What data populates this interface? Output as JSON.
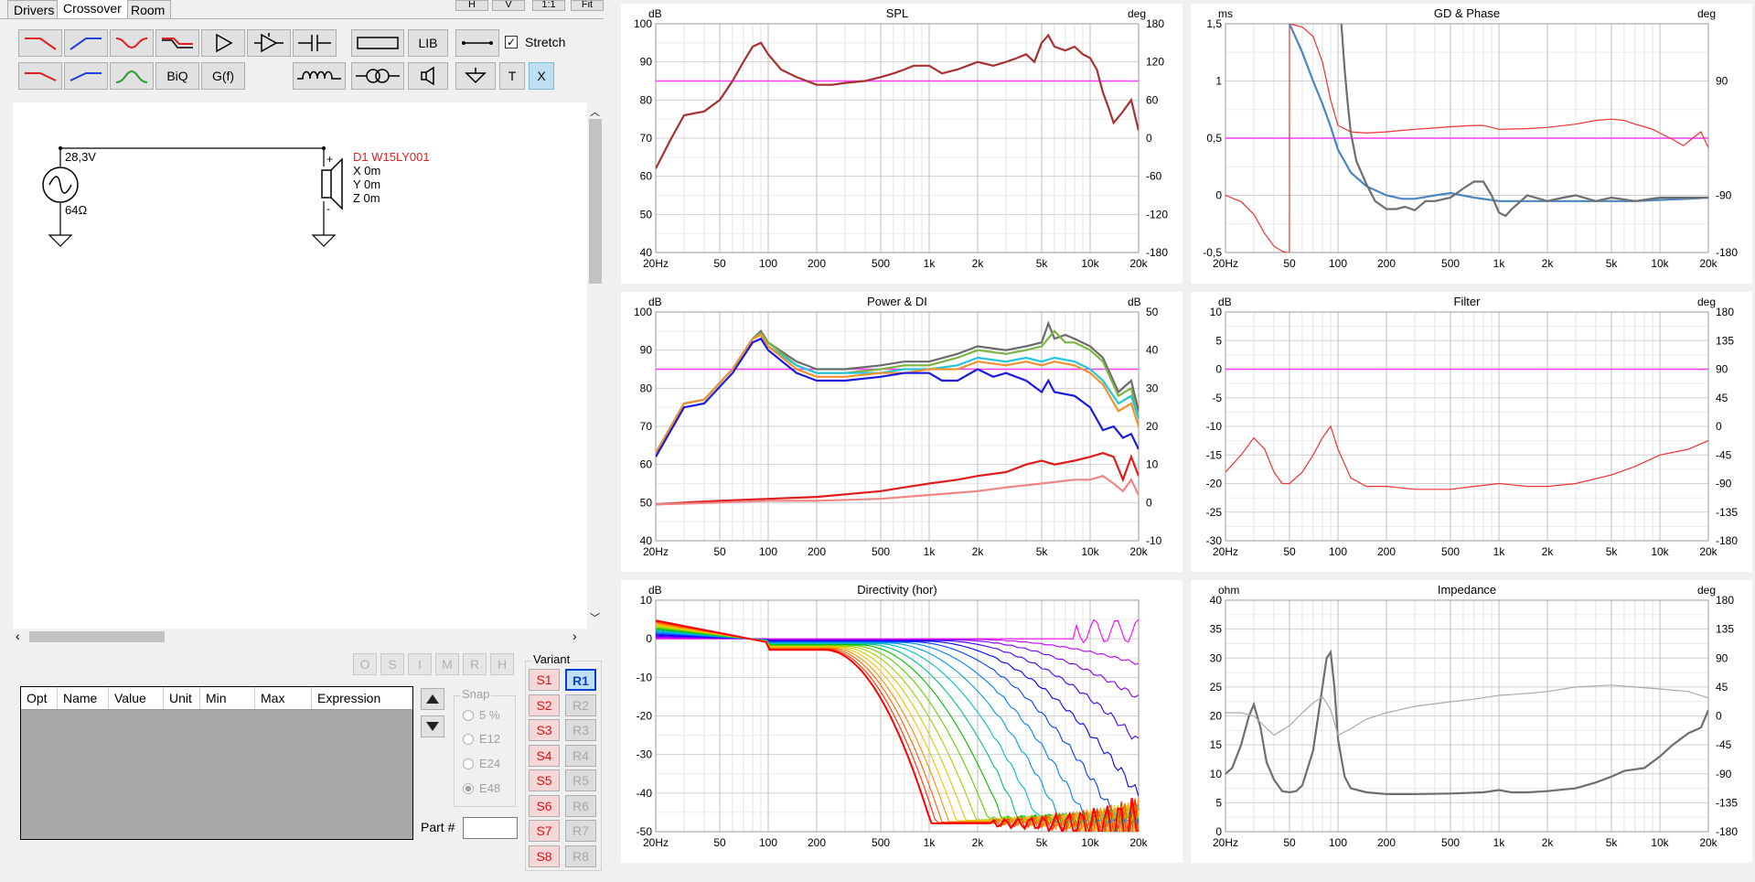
{
  "tabs": [
    {
      "label": "Drivers"
    },
    {
      "label": "Crossover"
    },
    {
      "label": "Room"
    }
  ],
  "top_buttons": [
    "H",
    "V",
    "1:1",
    "Fit"
  ],
  "toolbar": {
    "biq": "BiQ",
    "gf": "G(f)",
    "lib": "LIB",
    "t": "T",
    "x": "X",
    "stretch": "Stretch",
    "stretch_checked": true
  },
  "schematic": {
    "voltage": "28,3V",
    "impedance": "64Ω",
    "driver_name": "D1 W15LY001",
    "x": "X 0m",
    "y": "Y 0m",
    "z": "Z 0m"
  },
  "mini_buttons": [
    "O",
    "S",
    "I",
    "M",
    "R",
    "H"
  ],
  "opt_table": {
    "headers": [
      "Opt",
      "Name",
      "Value",
      "Unit",
      "Min",
      "Max",
      "Expression"
    ]
  },
  "snap": {
    "label": "Snap",
    "options": [
      "5 %",
      "E12",
      "E24",
      "E48"
    ],
    "selected": "E48"
  },
  "part_label": "Part #",
  "variant": {
    "label": "Variant",
    "s": [
      "S1",
      "S2",
      "S3",
      "S4",
      "S5",
      "S6",
      "S7",
      "S8"
    ],
    "r": [
      "R1",
      "R2",
      "R3",
      "R4",
      "R5",
      "R6",
      "R7",
      "R8"
    ],
    "selected": "R1"
  },
  "freq_ticks": [
    "20Hz",
    "50",
    "100",
    "200",
    "500",
    "1k",
    "2k",
    "5k",
    "10k",
    "20k"
  ],
  "chart_data": [
    {
      "type": "line",
      "title": "SPL",
      "xlabel": "Hz",
      "ylabel": "dB",
      "y2label": "deg",
      "xscale": "log",
      "xlim": [
        20,
        20000
      ],
      "ylim": [
        40,
        100
      ],
      "y2lim": [
        -180,
        180
      ],
      "yticks": [
        "100",
        "90",
        "80",
        "70",
        "60",
        "50",
        "40"
      ],
      "y2ticks": [
        "180",
        "120",
        "60",
        "0",
        "-60",
        "-120",
        "-180"
      ],
      "ref_line": 85,
      "series": [
        {
          "color": "#a83232",
          "x": [
            20,
            25,
            30,
            40,
            50,
            60,
            70,
            80,
            90,
            100,
            120,
            150,
            200,
            250,
            300,
            400,
            500,
            600,
            700,
            800,
            1000,
            1200,
            1500,
            2000,
            2500,
            3000,
            3500,
            4000,
            4500,
            5000,
            5500,
            6000,
            7000,
            8000,
            9000,
            10000,
            11000,
            12000,
            13000,
            14000,
            16000,
            18000,
            20000
          ],
          "y": [
            62,
            70,
            76,
            77,
            80,
            85,
            90,
            94,
            95,
            92,
            88,
            86,
            84,
            84,
            84.5,
            85,
            86,
            87,
            88,
            89,
            89,
            87,
            88,
            90,
            89,
            90,
            91,
            92,
            90,
            95,
            97,
            94,
            93,
            94,
            92,
            91,
            88,
            82,
            78,
            74,
            77,
            80,
            72
          ]
        }
      ]
    },
    {
      "type": "line",
      "title": "GD & Phase",
      "ylabel": "ms",
      "y2label": "deg",
      "xscale": "log",
      "xlim": [
        20,
        20000
      ],
      "ylim": [
        -0.5,
        1.5
      ],
      "y2lim": [
        -180,
        180
      ],
      "yticks": [
        "1,5",
        "1",
        "0,5",
        "0",
        "-0,5"
      ],
      "y2ticks": [
        "90",
        "-90",
        "-180"
      ],
      "ref_line": 0.5,
      "series": [
        {
          "name": "phase",
          "color": "#f03232",
          "x": [
            20,
            25,
            30,
            35,
            40,
            45,
            48,
            49.9,
            50,
            60,
            70,
            80,
            90,
            100,
            120,
            150,
            200,
            300,
            400,
            500,
            700,
            800,
            1000,
            1500,
            2000,
            3000,
            4000,
            5000,
            6000,
            7000,
            8000,
            9000,
            10000,
            12000,
            14000,
            16000,
            18000,
            20000
          ],
          "y": [
            -90,
            -100,
            -120,
            -150,
            -170,
            -178,
            -180,
            -180,
            180,
            175,
            160,
            120,
            60,
            20,
            10,
            8,
            10,
            14,
            16,
            18,
            20,
            20,
            14,
            15,
            17,
            22,
            28,
            30,
            28,
            22,
            18,
            14,
            8,
            -2,
            -12,
            0,
            10,
            -15
          ]
        },
        {
          "name": "GD blue",
          "color": "#4a86c2",
          "x": [
            50,
            60,
            70,
            80,
            90,
            100,
            120,
            150,
            200,
            250,
            300,
            400,
            500,
            700,
            1000,
            1500,
            2000,
            3000,
            5000,
            7000,
            10000,
            15000,
            20000
          ],
          "y": [
            1.5,
            1.25,
            1.0,
            0.8,
            0.6,
            0.4,
            0.2,
            0.08,
            0.0,
            -0.03,
            -0.03,
            0.0,
            0.02,
            -0.02,
            -0.05,
            -0.05,
            -0.05,
            -0.05,
            -0.05,
            -0.05,
            -0.04,
            -0.03,
            -0.02
          ]
        },
        {
          "name": "GD grey",
          "color": "#6e6e6e",
          "x": [
            105,
            110,
            115,
            120,
            130,
            150,
            170,
            200,
            230,
            260,
            300,
            350,
            400,
            500,
            600,
            700,
            800,
            900,
            1000,
            1100,
            1200,
            1500,
            2000,
            2500,
            3000,
            4000,
            5000,
            7000,
            10000,
            15000,
            20000
          ],
          "y": [
            1.5,
            1.1,
            0.8,
            0.55,
            0.3,
            0.1,
            -0.05,
            -0.12,
            -0.12,
            -0.1,
            -0.13,
            -0.05,
            -0.05,
            -0.02,
            0.06,
            0.12,
            0.12,
            0.0,
            -0.15,
            -0.18,
            -0.12,
            0.0,
            -0.05,
            -0.02,
            0.0,
            -0.05,
            -0.02,
            -0.05,
            -0.02,
            -0.02,
            -0.02
          ]
        }
      ]
    },
    {
      "type": "line",
      "title": "Power & DI",
      "ylabel": "dB",
      "y2label": "dB",
      "xscale": "log",
      "xlim": [
        20,
        20000
      ],
      "ylim": [
        40,
        100
      ],
      "y2lim": [
        -10,
        50
      ],
      "yticks": [
        "100",
        "90",
        "80",
        "70",
        "60",
        "50",
        "40"
      ],
      "y2ticks": [
        "50",
        "40",
        "30",
        "20",
        "10",
        "0",
        "-10"
      ],
      "ref_line": 85,
      "series": [
        {
          "name": "grey",
          "color": "#6b6b6b",
          "x": [
            20,
            30,
            40,
            60,
            80,
            90,
            100,
            150,
            200,
            300,
            500,
            700,
            1000,
            1500,
            2000,
            3000,
            4000,
            5000,
            5500,
            6000,
            7000,
            8000,
            10000,
            12000,
            15000,
            18000,
            20000
          ],
          "y": [
            63,
            76,
            77,
            85,
            93,
            95,
            92,
            87,
            85,
            85,
            86,
            87,
            87,
            89,
            91,
            90,
            91,
            92,
            97,
            93,
            94,
            93,
            91,
            88,
            79,
            82,
            74
          ]
        },
        {
          "name": "green",
          "color": "#7cb342",
          "x": [
            20,
            30,
            40,
            60,
            80,
            90,
            100,
            150,
            200,
            300,
            500,
            700,
            1000,
            1500,
            2000,
            3000,
            4000,
            5000,
            6000,
            7000,
            8000,
            10000,
            12000,
            15000,
            18000,
            20000
          ],
          "y": [
            63,
            76,
            77,
            85,
            93,
            94.5,
            92,
            86,
            84,
            84,
            85,
            86,
            86,
            88,
            90,
            89,
            90,
            91,
            95,
            92,
            92,
            90,
            87,
            78,
            80,
            72
          ]
        },
        {
          "name": "cyan",
          "color": "#26c6da",
          "x": [
            20,
            30,
            40,
            60,
            80,
            90,
            100,
            150,
            200,
            300,
            500,
            700,
            1000,
            1500,
            2000,
            3000,
            4000,
            5000,
            6000,
            8000,
            10000,
            12000,
            15000,
            18000,
            20000
          ],
          "y": [
            63,
            76,
            77,
            85,
            93,
            94,
            91,
            86,
            84,
            84,
            84,
            85,
            85,
            86,
            88,
            87,
            88,
            87,
            88,
            87,
            85,
            82,
            76,
            78,
            72
          ]
        },
        {
          "name": "orange",
          "color": "#f29130",
          "x": [
            20,
            30,
            40,
            60,
            80,
            90,
            100,
            150,
            200,
            300,
            500,
            700,
            1000,
            1500,
            2000,
            3000,
            4000,
            5000,
            6000,
            8000,
            10000,
            12000,
            15000,
            18000,
            20000
          ],
          "y": [
            63,
            76,
            77,
            85,
            93,
            94,
            91,
            85,
            83,
            83,
            84,
            84,
            85,
            85,
            87,
            86,
            87,
            86,
            87,
            86,
            84,
            81,
            74,
            76,
            70
          ]
        },
        {
          "name": "blue",
          "color": "#1b1be0",
          "x": [
            20,
            30,
            40,
            60,
            80,
            90,
            100,
            150,
            200,
            300,
            500,
            700,
            1000,
            1200,
            1500,
            2000,
            2500,
            3000,
            4000,
            5000,
            5500,
            6000,
            8000,
            10000,
            12000,
            14000,
            16000,
            18000,
            20000
          ],
          "y": [
            62,
            75,
            76,
            84,
            92,
            93,
            90,
            84,
            82,
            82,
            83,
            84,
            84,
            82,
            82,
            85,
            83,
            84,
            82,
            79,
            82,
            79,
            78,
            75,
            69,
            70,
            67,
            68,
            64
          ]
        },
        {
          "name": "DI red",
          "color": "#e01c1c",
          "x": [
            20,
            30,
            50,
            100,
            200,
            500,
            700,
            1000,
            1500,
            2000,
            3000,
            4000,
            5000,
            6000,
            8000,
            10000,
            12000,
            14000,
            16000,
            18000,
            20000
          ],
          "y": [
            49.5,
            50,
            50.5,
            51,
            51.5,
            53,
            54,
            55,
            56,
            57,
            58,
            60,
            61,
            60,
            61,
            62,
            63,
            62,
            56,
            62,
            57
          ]
        },
        {
          "name": "DI light red",
          "color": "#f08585",
          "x": [
            20,
            50,
            100,
            200,
            500,
            1000,
            2000,
            3000,
            5000,
            8000,
            10000,
            12000,
            14000,
            16000,
            18000,
            20000
          ],
          "y": [
            49.5,
            50,
            50.5,
            50.5,
            51,
            52,
            53,
            54,
            55,
            56,
            56,
            57,
            55,
            53,
            56,
            52
          ]
        }
      ]
    },
    {
      "type": "line",
      "title": "Filter",
      "ylabel": "dB",
      "y2label": "deg",
      "xscale": "log",
      "xlim": [
        20,
        20000
      ],
      "ylim": [
        -30,
        10
      ],
      "y2lim": [
        -180,
        180
      ],
      "yticks": [
        "10",
        "5",
        "0",
        "-5",
        "-10",
        "-15",
        "-20",
        "-25",
        "-30"
      ],
      "y2ticks": [
        "180",
        "135",
        "90",
        "45",
        "0",
        "-45",
        "-90",
        "-135",
        "-180"
      ],
      "ref_line": 0,
      "series": [
        {
          "color": "#f03232",
          "x": [
            20,
            25,
            30,
            35,
            40,
            45,
            50,
            60,
            70,
            80,
            90,
            100,
            120,
            150,
            200,
            300,
            500,
            700,
            1000,
            1500,
            2000,
            3000,
            5000,
            7000,
            10000,
            15000,
            20000
          ],
          "y": [
            -18,
            -15,
            -12,
            -14,
            -18,
            -20,
            -20,
            -18,
            -15,
            -12,
            -10,
            -14,
            -19,
            -20.5,
            -20.5,
            -21,
            -21,
            -20.5,
            -20,
            -20.5,
            -20.5,
            -20,
            -18.5,
            -17,
            -15,
            -14,
            -12.5
          ]
        }
      ]
    },
    {
      "type": "line",
      "title": "Directivity (hor)",
      "ylabel": "dB",
      "xscale": "log",
      "xlim": [
        20,
        20000
      ],
      "ylim": [
        -50,
        10
      ],
      "yticks": [
        "10",
        "0",
        "-10",
        "-20",
        "-30",
        "-40",
        "-50"
      ],
      "series": [
        {
          "note": "multiple off-axis curves, rainbow colored"
        }
      ]
    },
    {
      "type": "line",
      "title": "Impedance",
      "ylabel": "ohm",
      "y2label": "deg",
      "xscale": "log",
      "xlim": [
        20,
        20000
      ],
      "ylim": [
        0,
        40
      ],
      "y2lim": [
        -180,
        180
      ],
      "yticks": [
        "40",
        "35",
        "30",
        "25",
        "20",
        "15",
        "10",
        "5",
        "0"
      ],
      "y2ticks": [
        "180",
        "135",
        "90",
        "45",
        "0",
        "-45",
        "-90",
        "-135",
        "-180"
      ],
      "series": [
        {
          "name": "impedance",
          "color": "#6e6e6e",
          "x": [
            20,
            22,
            25,
            28,
            30,
            33,
            36,
            40,
            45,
            50,
            55,
            60,
            70,
            80,
            85,
            90,
            95,
            100,
            110,
            120,
            150,
            200,
            300,
            500,
            800,
            1000,
            1200,
            1500,
            2000,
            3000,
            4000,
            5000,
            6000,
            8000,
            10000,
            12000,
            15000,
            18000,
            20000
          ],
          "y": [
            10,
            11,
            15,
            20,
            22,
            18,
            12,
            9,
            7,
            6.8,
            7,
            8,
            14,
            25,
            30,
            31,
            25,
            16,
            9.5,
            7.5,
            6.8,
            6.5,
            6.5,
            6.6,
            6.8,
            7.2,
            6.8,
            6.8,
            7,
            7.5,
            8.5,
            9.5,
            10.5,
            11,
            13,
            15,
            17,
            18,
            21
          ]
        },
        {
          "name": "phase",
          "color": "#aaaaaa",
          "x": [
            20,
            25,
            30,
            40,
            50,
            60,
            70,
            80,
            90,
            100,
            120,
            150,
            200,
            300,
            500,
            700,
            1000,
            1500,
            2000,
            3000,
            5000,
            7000,
            10000,
            15000,
            20000
          ],
          "y": [
            5,
            5,
            0,
            -30,
            -15,
            5,
            20,
            30,
            10,
            -30,
            -20,
            -5,
            5,
            15,
            22,
            26,
            32,
            35,
            38,
            45,
            48,
            45,
            42,
            38,
            28
          ]
        }
      ]
    }
  ]
}
